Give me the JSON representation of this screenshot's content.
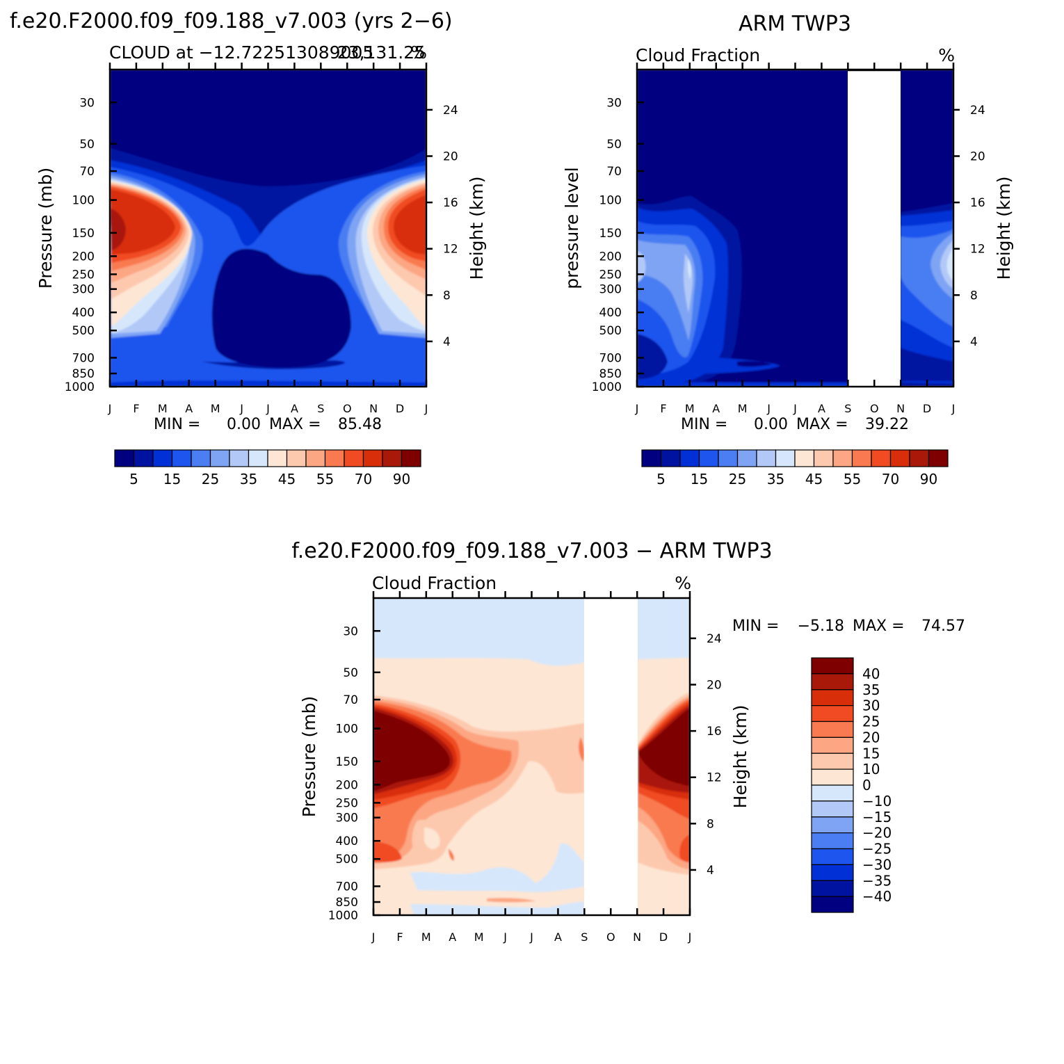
{
  "colors": {
    "cloud_levels": [
      "#000080",
      "#0012a0",
      "#0030d6",
      "#1e55ee",
      "#4a7ef2",
      "#7fa4f4",
      "#b2c9f8",
      "#d6e7fb",
      "#fde6d4",
      "#fdc9ae",
      "#fca683",
      "#f97a50",
      "#f04b22",
      "#d82f0a",
      "#a9190a",
      "#7e0000"
    ],
    "diff_levels": [
      "#000080",
      "#0012a0",
      "#0030d6",
      "#1e55ee",
      "#4a7ef2",
      "#7fa4f4",
      "#b2c9f8",
      "#d6e7fb",
      "#fde6d4",
      "#fdc9ae",
      "#fca683",
      "#f97a50",
      "#f04b22",
      "#d82f0a",
      "#a9190a",
      "#7e0000"
    ]
  },
  "chart_data": [
    {
      "type": "heatmap",
      "title": "f.e20.F2000.f09_f09.188_v7.003 (yrs 2−6)",
      "subtitle_left": "CLOUD at −12.722513089005",
      "subtitle_right_overlap": "23,131.25",
      "units": "%",
      "ylabel": "Pressure (mb)",
      "ylabel_right": "Height (km)",
      "x_ticks": [
        "J",
        "F",
        "M",
        "A",
        "M",
        "J",
        "J",
        "A",
        "S",
        "O",
        "N",
        "D",
        "J"
      ],
      "y_ticks": [
        "30",
        "50",
        "70",
        "100",
        "150",
        "200",
        "250",
        "300",
        "400",
        "500",
        "700",
        "850",
        "1000"
      ],
      "y_values": [
        30,
        50,
        70,
        100,
        150,
        200,
        250,
        300,
        400,
        500,
        700,
        850,
        1000
      ],
      "ylim": [
        20,
        1000
      ],
      "height_ticks": [
        "24",
        "20",
        "16",
        "12",
        "8",
        "4"
      ],
      "height_values": [
        24,
        20,
        16,
        12,
        8,
        4
      ],
      "stats": {
        "min_label": "MIN =",
        "min": "0.00",
        "max_label": "MAX =",
        "max": "85.48"
      },
      "colorbar_labels": [
        "5",
        "15",
        "25",
        "35",
        "45",
        "55",
        "70",
        "90"
      ]
    },
    {
      "type": "heatmap",
      "title": "ARM TWP3",
      "subtitle_left": "Cloud Fraction",
      "units": "%",
      "ylabel": "pressure level",
      "ylabel_right": "Height (km)",
      "x_ticks": [
        "J",
        "F",
        "M",
        "A",
        "M",
        "J",
        "J",
        "A",
        "S",
        "O",
        "N",
        "D",
        "J"
      ],
      "y_ticks": [
        "30",
        "50",
        "70",
        "100",
        "150",
        "200",
        "250",
        "300",
        "400",
        "500",
        "700",
        "850",
        "1000"
      ],
      "y_values": [
        30,
        50,
        70,
        100,
        150,
        200,
        250,
        300,
        400,
        500,
        700,
        850,
        1000
      ],
      "ylim": [
        20,
        1000
      ],
      "height_ticks": [
        "24",
        "20",
        "16",
        "12",
        "8",
        "4"
      ],
      "height_values": [
        24,
        20,
        16,
        12,
        8,
        4
      ],
      "missing_months": [
        "O"
      ],
      "stats": {
        "min_label": "MIN =",
        "min": "0.00",
        "max_label": "MAX =",
        "max": "39.22"
      },
      "colorbar_labels": [
        "5",
        "15",
        "25",
        "35",
        "45",
        "55",
        "70",
        "90"
      ]
    },
    {
      "type": "heatmap",
      "title": "f.e20.F2000.f09_f09.188_v7.003 − ARM TWP3",
      "subtitle_left": "Cloud Fraction",
      "units": "%",
      "ylabel": "Pressure (mb)",
      "ylabel_right": "Height (km)",
      "x_ticks": [
        "J",
        "F",
        "M",
        "A",
        "M",
        "J",
        "J",
        "A",
        "S",
        "O",
        "N",
        "D",
        "J"
      ],
      "y_ticks": [
        "30",
        "50",
        "70",
        "100",
        "150",
        "200",
        "250",
        "300",
        "400",
        "500",
        "700",
        "850",
        "1000"
      ],
      "y_values": [
        30,
        50,
        70,
        100,
        150,
        200,
        250,
        300,
        400,
        500,
        700,
        850,
        1000
      ],
      "ylim": [
        20,
        1000
      ],
      "height_ticks": [
        "24",
        "20",
        "16",
        "12",
        "8",
        "4"
      ],
      "height_values": [
        24,
        20,
        16,
        12,
        8,
        4
      ],
      "missing_months": [
        "O"
      ],
      "stats": {
        "min_label": "MIN =",
        "min": "−5.18",
        "max_label": "MAX =",
        "max": "74.57"
      },
      "colorbar_labels": [
        "40",
        "35",
        "30",
        "25",
        "20",
        "15",
        "10",
        "0",
        "−10",
        "−15",
        "−20",
        "−25",
        "−30",
        "−35",
        "−40"
      ]
    }
  ]
}
